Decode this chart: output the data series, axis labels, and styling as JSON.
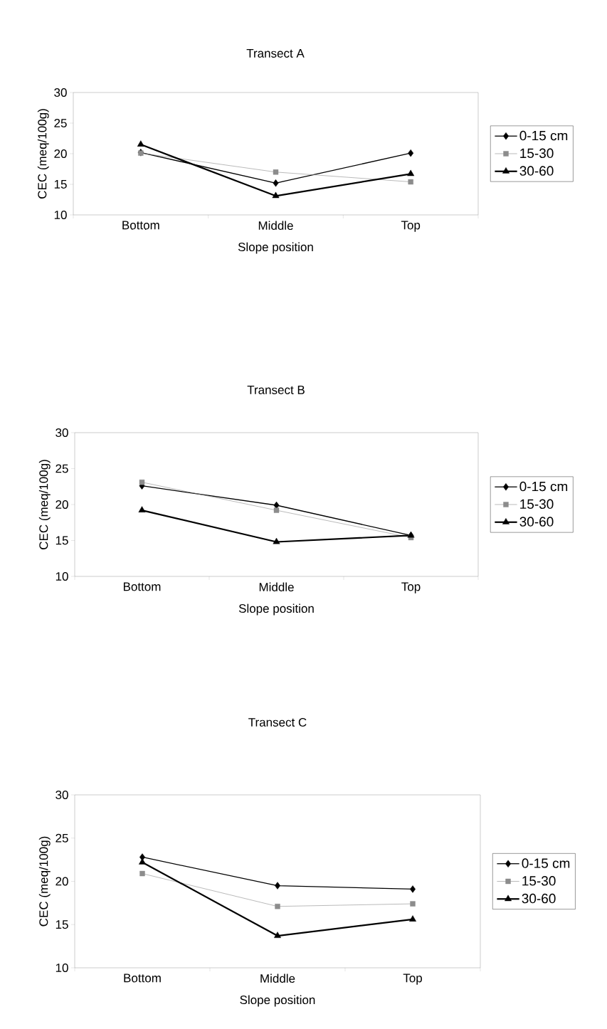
{
  "chart_data": [
    {
      "type": "line",
      "title": "Transect A",
      "xlabel": "Slope position",
      "ylabel": "CEC (meq/100g)",
      "categories": [
        "Bottom",
        "Middle",
        "Top"
      ],
      "ylim": [
        10,
        30
      ],
      "yticks": [
        10,
        15,
        20,
        25,
        30
      ],
      "legend": "right",
      "grid": false,
      "series": [
        {
          "name": "0-15 cm",
          "color": "#000000",
          "marker": "diamond",
          "values": [
            20.2,
            15.2,
            20.1
          ]
        },
        {
          "name": "15-30",
          "color": "#8c8c8c",
          "marker": "square",
          "values": [
            20.1,
            17.0,
            15.4
          ]
        },
        {
          "name": "30-60",
          "color": "#000000",
          "marker": "triangle",
          "values": [
            21.5,
            13.1,
            16.7
          ]
        }
      ]
    },
    {
      "type": "line",
      "title": "Transect B",
      "xlabel": "Slope position",
      "ylabel": "CEC (meq/100g)",
      "categories": [
        "Bottom",
        "Middle",
        "Top"
      ],
      "ylim": [
        10,
        30
      ],
      "yticks": [
        10,
        15,
        20,
        25,
        30
      ],
      "legend": "right",
      "grid": false,
      "series": [
        {
          "name": "0-15 cm",
          "color": "#000000",
          "marker": "diamond",
          "values": [
            22.6,
            19.9,
            15.7
          ]
        },
        {
          "name": "15-30",
          "color": "#8c8c8c",
          "marker": "square",
          "values": [
            23.1,
            19.2,
            15.4
          ]
        },
        {
          "name": "30-60",
          "color": "#000000",
          "marker": "triangle",
          "values": [
            19.2,
            14.8,
            15.7
          ]
        }
      ]
    },
    {
      "type": "line",
      "title": "Transect C",
      "xlabel": "Slope position",
      "ylabel": "CEC (meq/100g)",
      "categories": [
        "Bottom",
        "Middle",
        "Top"
      ],
      "ylim": [
        10,
        30
      ],
      "yticks": [
        10,
        15,
        20,
        25,
        30
      ],
      "legend": "right",
      "grid": false,
      "series": [
        {
          "name": "0-15 cm",
          "color": "#000000",
          "marker": "diamond",
          "values": [
            22.8,
            19.5,
            19.1
          ]
        },
        {
          "name": "15-30",
          "color": "#8c8c8c",
          "marker": "square",
          "values": [
            20.9,
            17.1,
            17.4
          ]
        },
        {
          "name": "30-60",
          "color": "#000000",
          "marker": "triangle",
          "values": [
            22.2,
            13.7,
            15.6
          ]
        }
      ]
    }
  ]
}
